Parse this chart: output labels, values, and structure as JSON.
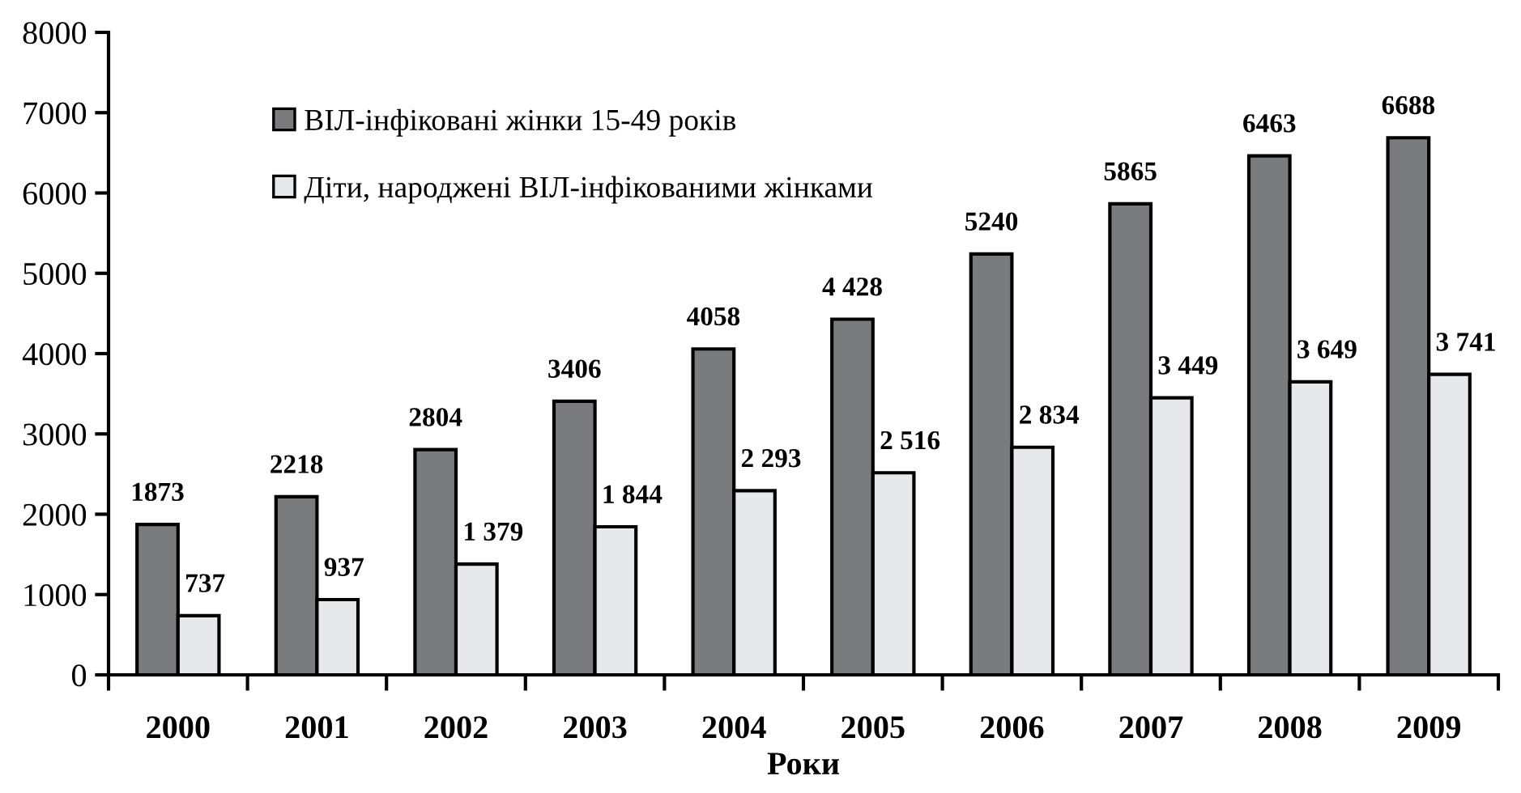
{
  "chart_data": {
    "type": "bar",
    "xlabel": "Роки",
    "categories": [
      "2000",
      "2001",
      "2002",
      "2003",
      "2004",
      "2005",
      "2006",
      "2007",
      "2008",
      "2009"
    ],
    "series": [
      {
        "name": "ВІЛ-інфіковані жінки 15-49 років",
        "color": "#7a7b7d",
        "values": [
          1873,
          2218,
          2804,
          3406,
          4058,
          4428,
          5240,
          5865,
          6463,
          6688
        ],
        "value_labels": [
          "1873",
          "2218",
          "2804",
          "3406",
          "4058",
          "4 428",
          "5240",
          "5865",
          "6463",
          "6688"
        ]
      },
      {
        "name": "Діти, народжені ВІЛ-інфікованими жінками",
        "color": "#e7e8ea",
        "values": [
          737,
          937,
          1379,
          1844,
          2293,
          2516,
          2834,
          3449,
          3649,
          3741
        ],
        "value_labels": [
          "737",
          "937",
          "1 379",
          "1 844",
          "2 293",
          "2 516",
          "2 834",
          "3 449",
          "3 649",
          "3 741"
        ]
      }
    ],
    "ylim": [
      0,
      8000
    ],
    "yticks": [
      0,
      1000,
      2000,
      3000,
      4000,
      5000,
      6000,
      7000,
      8000
    ],
    "grid": false,
    "legend": "top left"
  }
}
